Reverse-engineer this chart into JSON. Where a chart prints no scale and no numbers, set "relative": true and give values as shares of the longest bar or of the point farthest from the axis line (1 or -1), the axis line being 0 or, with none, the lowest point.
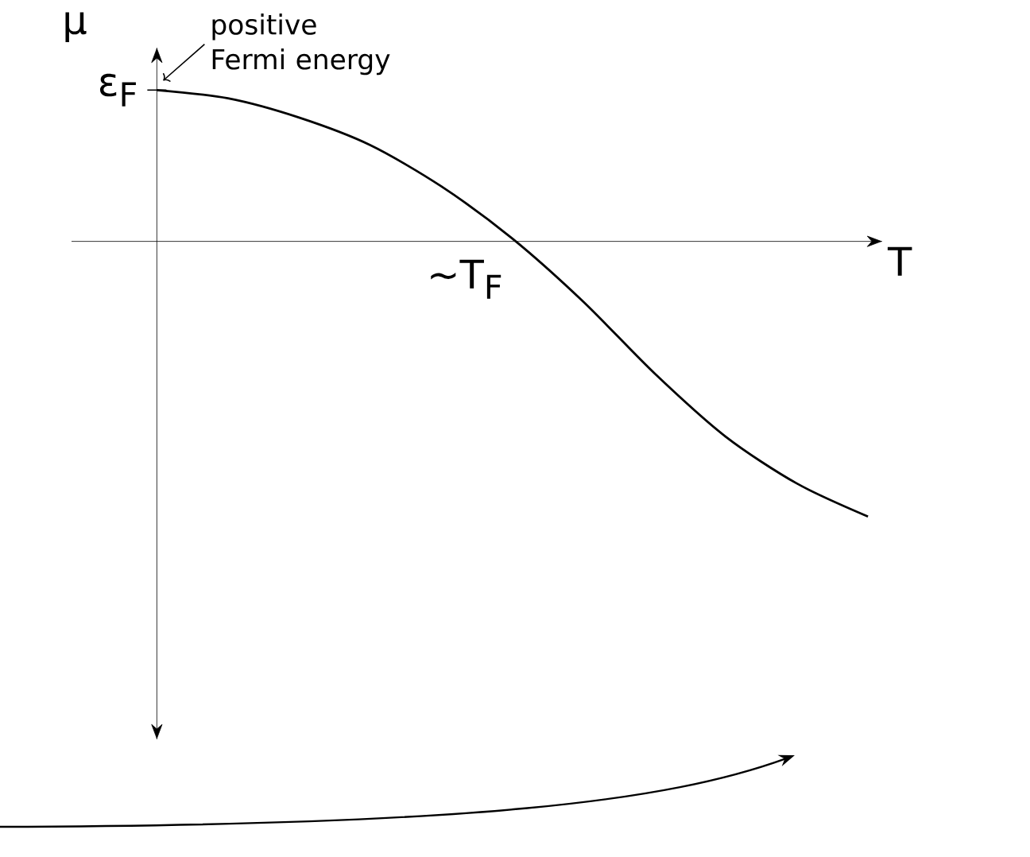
{
  "chart_data": {
    "type": "line",
    "xlabel": "T",
    "ylabel": "μ",
    "relative": true,
    "categories": [
      null,
      null,
      null,
      null,
      null,
      null,
      null,
      null,
      null,
      null,
      null
    ],
    "series": [
      {
        "color": "#000000",
        "values": [
          0.55,
          0.52,
          0.45,
          0.35,
          0.2,
          0.01,
          -0.22,
          -0.48,
          -0.71,
          -0.88,
          -1
        ]
      }
    ],
    "annotations": [
      "ε$_{F}$",
      "~T$_{F}$",
      "positive Fermi energy"
    ],
    "marker": "none",
    "line_style": "solid"
  }
}
